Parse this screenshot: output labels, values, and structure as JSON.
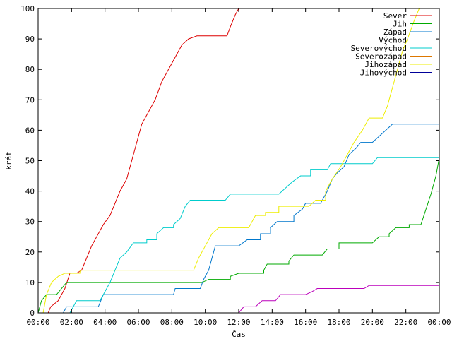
{
  "chart_data": {
    "type": "line",
    "xlabel": "Čas",
    "ylabel": "krát",
    "xlim": [
      0,
      24
    ],
    "ylim": [
      0,
      100
    ],
    "grid": false,
    "legend_position": "top-right",
    "x_tick_labels": [
      "00:00",
      "02:00",
      "04:00",
      "06:00",
      "08:00",
      "10:00",
      "12:00",
      "14:00",
      "16:00",
      "18:00",
      "20:00",
      "22:00",
      "00:00"
    ],
    "y_tick_labels": [
      "0",
      "10",
      "20",
      "30",
      "40",
      "50",
      "60",
      "70",
      "80",
      "90",
      "100"
    ],
    "series": [
      {
        "name": "Sever",
        "color": "#dd0000",
        "points": [
          [
            0.6,
            0
          ],
          [
            0.75,
            2
          ],
          [
            1.2,
            4
          ],
          [
            1.6,
            8
          ],
          [
            1.9,
            13
          ],
          [
            2.3,
            13
          ],
          [
            2.6,
            14
          ],
          [
            2.9,
            18
          ],
          [
            3.2,
            22
          ],
          [
            3.5,
            25
          ],
          [
            3.9,
            29
          ],
          [
            4.3,
            32
          ],
          [
            4.6,
            36
          ],
          [
            4.9,
            40
          ],
          [
            5.3,
            44
          ],
          [
            5.6,
            50
          ],
          [
            5.9,
            56
          ],
          [
            6.2,
            62
          ],
          [
            6.6,
            66
          ],
          [
            7.0,
            70
          ],
          [
            7.4,
            76
          ],
          [
            7.8,
            80
          ],
          [
            8.2,
            84
          ],
          [
            8.6,
            88
          ],
          [
            9.0,
            90
          ],
          [
            9.5,
            91
          ],
          [
            11.3,
            91
          ],
          [
            11.5,
            94
          ],
          [
            11.8,
            98
          ],
          [
            12.0,
            100
          ]
        ]
      },
      {
        "name": "Jih",
        "color": "#00aa00",
        "points": [
          [
            0,
            0
          ],
          [
            0.2,
            4
          ],
          [
            0.5,
            6
          ],
          [
            1.1,
            6
          ],
          [
            1.4,
            8
          ],
          [
            1.7,
            10
          ],
          [
            2.5,
            10
          ],
          [
            9.8,
            10
          ],
          [
            10.2,
            11
          ],
          [
            11.5,
            12
          ],
          [
            12.0,
            13
          ],
          [
            13.5,
            14
          ],
          [
            13.7,
            16
          ],
          [
            15.0,
            17
          ],
          [
            15.3,
            19
          ],
          [
            17.0,
            19
          ],
          [
            17.3,
            21
          ],
          [
            18.0,
            23
          ],
          [
            20.0,
            23
          ],
          [
            20.4,
            25
          ],
          [
            21.0,
            26
          ],
          [
            21.4,
            28
          ],
          [
            22.2,
            29
          ],
          [
            22.9,
            29
          ],
          [
            23.2,
            34
          ],
          [
            23.5,
            39
          ],
          [
            23.8,
            45
          ],
          [
            24.0,
            51
          ]
        ]
      },
      {
        "name": "Západ",
        "color": "#0077cc",
        "points": [
          [
            1.5,
            0
          ],
          [
            1.7,
            2
          ],
          [
            3.6,
            2
          ],
          [
            3.9,
            6
          ],
          [
            8.1,
            6
          ],
          [
            8.2,
            8
          ],
          [
            9.7,
            8
          ],
          [
            9.9,
            11
          ],
          [
            10.2,
            14
          ],
          [
            10.4,
            18
          ],
          [
            10.6,
            22
          ],
          [
            12.0,
            22
          ],
          [
            12.5,
            24
          ],
          [
            13.3,
            26
          ],
          [
            13.9,
            28
          ],
          [
            14.3,
            30
          ],
          [
            15.3,
            32
          ],
          [
            15.8,
            34
          ],
          [
            16.0,
            36
          ],
          [
            16.9,
            36
          ],
          [
            17.3,
            40
          ],
          [
            17.6,
            44
          ],
          [
            17.9,
            46
          ],
          [
            18.3,
            48
          ],
          [
            18.6,
            52
          ],
          [
            19.0,
            54
          ],
          [
            19.3,
            56
          ],
          [
            20.0,
            56
          ],
          [
            20.4,
            58
          ],
          [
            20.8,
            60
          ],
          [
            21.2,
            62
          ],
          [
            24.0,
            62
          ]
        ]
      },
      {
        "name": "Východ",
        "color": "#bb00bb",
        "points": [
          [
            12.0,
            0
          ],
          [
            12.3,
            2
          ],
          [
            13.0,
            2
          ],
          [
            13.4,
            4
          ],
          [
            14.2,
            4
          ],
          [
            14.5,
            6
          ],
          [
            16.0,
            6
          ],
          [
            16.4,
            7
          ],
          [
            16.7,
            8
          ],
          [
            19.5,
            8
          ],
          [
            19.8,
            9
          ],
          [
            24.0,
            9
          ]
        ]
      },
      {
        "name": "Severovýchod",
        "color": "#00cccc",
        "points": [
          [
            1.9,
            0
          ],
          [
            2.1,
            2
          ],
          [
            2.3,
            4
          ],
          [
            3.7,
            4
          ],
          [
            3.9,
            6
          ],
          [
            4.3,
            10
          ],
          [
            4.6,
            14
          ],
          [
            4.9,
            18
          ],
          [
            5.3,
            20
          ],
          [
            5.7,
            23
          ],
          [
            6.5,
            24
          ],
          [
            7.1,
            26
          ],
          [
            7.5,
            28
          ],
          [
            8.1,
            29
          ],
          [
            8.5,
            31
          ],
          [
            8.8,
            35
          ],
          [
            9.1,
            37
          ],
          [
            11.2,
            37
          ],
          [
            11.5,
            39
          ],
          [
            14.4,
            39
          ],
          [
            14.8,
            41
          ],
          [
            15.2,
            43
          ],
          [
            15.7,
            45
          ],
          [
            16.3,
            47
          ],
          [
            17.3,
            47
          ],
          [
            17.5,
            49
          ],
          [
            20.0,
            49
          ],
          [
            20.3,
            51
          ],
          [
            24.0,
            51
          ]
        ]
      },
      {
        "name": "Severozápad",
        "color": "#dd7700",
        "points": []
      },
      {
        "name": "Jihozápad",
        "color": "#eeee00",
        "points": [
          [
            0.3,
            0
          ],
          [
            0.5,
            6
          ],
          [
            0.8,
            10
          ],
          [
            1.2,
            12
          ],
          [
            1.6,
            13
          ],
          [
            2.5,
            14
          ],
          [
            9.3,
            14
          ],
          [
            9.6,
            18
          ],
          [
            10.0,
            22
          ],
          [
            10.4,
            26
          ],
          [
            10.8,
            28
          ],
          [
            12.6,
            28
          ],
          [
            13.0,
            32
          ],
          [
            13.6,
            33
          ],
          [
            14.4,
            35
          ],
          [
            16.2,
            35
          ],
          [
            16.6,
            37
          ],
          [
            17.2,
            40
          ],
          [
            17.6,
            44
          ],
          [
            18.1,
            48
          ],
          [
            18.5,
            52
          ],
          [
            18.9,
            56
          ],
          [
            19.4,
            60
          ],
          [
            19.8,
            64
          ],
          [
            20.6,
            64
          ],
          [
            20.9,
            68
          ],
          [
            21.2,
            74
          ],
          [
            21.5,
            80
          ],
          [
            21.8,
            86
          ],
          [
            22.1,
            90
          ],
          [
            22.5,
            96
          ],
          [
            22.8,
            100
          ]
        ]
      },
      {
        "name": "Jihovýchod",
        "color": "#000099",
        "points": []
      }
    ]
  }
}
